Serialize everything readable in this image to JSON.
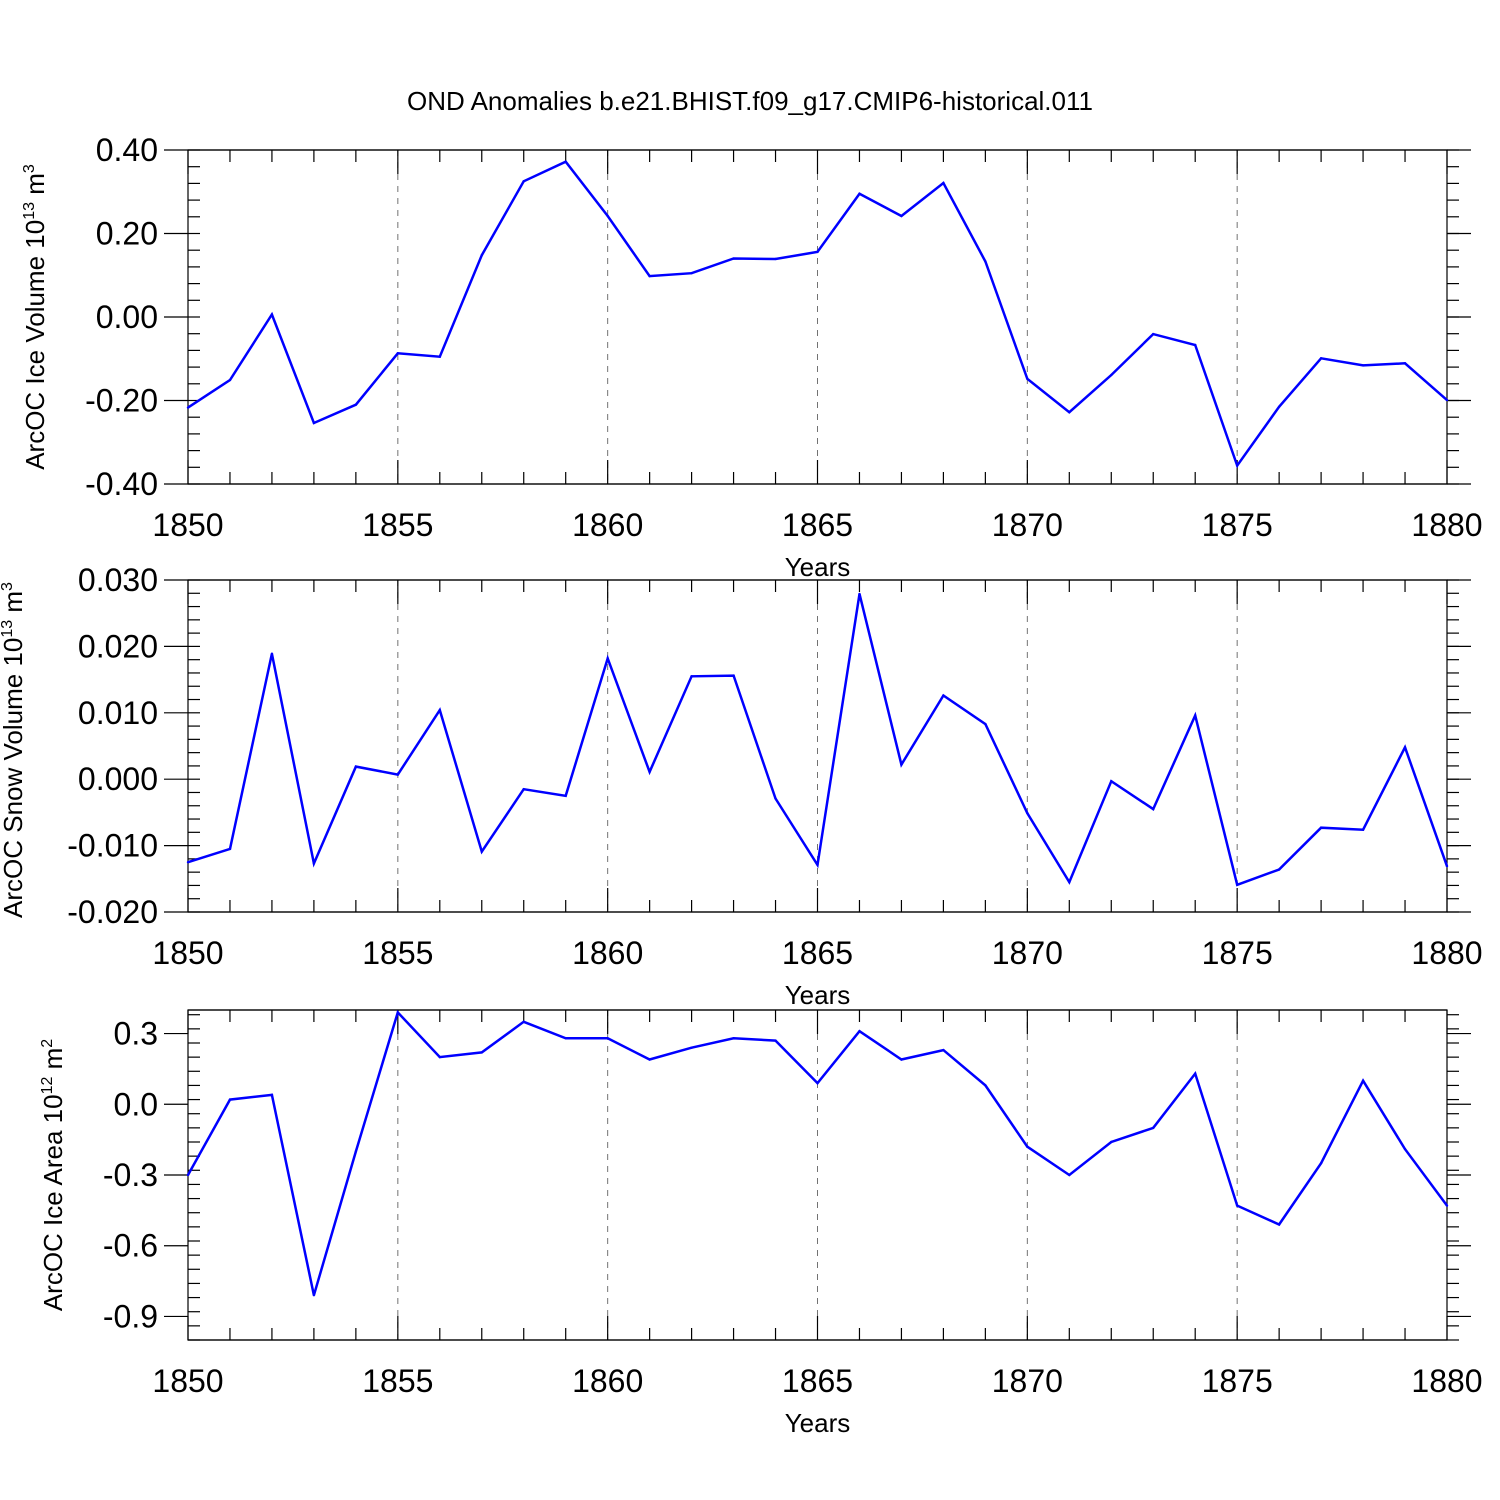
{
  "title": "OND Anomalies b.e21.BHIST.f09_g17.CMIP6-historical.011",
  "colors": {
    "line": "#0000ff",
    "axis": "#000000"
  },
  "chart_data": [
    {
      "type": "line",
      "ylabel_main": "ArcOC Ice Volume 10",
      "ylabel_sup": "13",
      "ylabel_unit": " m",
      "ylabel_unit_sup": "3",
      "xlabel": "Years",
      "xlim": [
        1850,
        1880
      ],
      "ylim": [
        -0.4,
        0.4
      ],
      "yticks": [
        -0.4,
        -0.2,
        0.0,
        0.2,
        0.4
      ],
      "yticklabels": [
        "-0.40",
        "-0.20",
        "0.00",
        "0.20",
        "0.40"
      ],
      "xticks": [
        1850,
        1855,
        1860,
        1865,
        1870,
        1875,
        1880
      ],
      "xticklabels": [
        "1850",
        "1855",
        "1860",
        "1865",
        "1870",
        "1875",
        "1880"
      ],
      "x": [
        1850,
        1851,
        1852,
        1853,
        1854,
        1855,
        1856,
        1857,
        1858,
        1859,
        1860,
        1861,
        1862,
        1863,
        1864,
        1865,
        1866,
        1867,
        1868,
        1869,
        1870,
        1871,
        1872,
        1873,
        1874,
        1875,
        1876,
        1877,
        1878,
        1879,
        1880
      ],
      "y": [
        -0.217,
        -0.151,
        0.006,
        -0.254,
        -0.21,
        -0.087,
        -0.095,
        0.148,
        0.325,
        0.372,
        0.242,
        0.098,
        0.105,
        0.14,
        0.139,
        0.156,
        0.295,
        0.242,
        0.321,
        0.133,
        -0.148,
        -0.228,
        -0.139,
        -0.041,
        -0.067,
        -0.356,
        -0.215,
        -0.099,
        -0.116,
        -0.111,
        -0.199
      ]
    },
    {
      "type": "line",
      "ylabel_main": "ArcOC Snow Volume 10",
      "ylabel_sup": "13",
      "ylabel_unit": " m",
      "ylabel_unit_sup": "3",
      "xlabel": "Years",
      "xlim": [
        1850,
        1880
      ],
      "ylim": [
        -0.02,
        0.03
      ],
      "yticks": [
        -0.02,
        -0.01,
        0.0,
        0.01,
        0.02,
        0.03
      ],
      "yticklabels": [
        "-0.020",
        "-0.010",
        "0.000",
        "0.010",
        "0.020",
        "0.030"
      ],
      "xticks": [
        1850,
        1855,
        1860,
        1865,
        1870,
        1875,
        1880
      ],
      "xticklabels": [
        "1850",
        "1855",
        "1860",
        "1865",
        "1870",
        "1875",
        "1880"
      ],
      "x": [
        1850,
        1851,
        1852,
        1853,
        1854,
        1855,
        1856,
        1857,
        1858,
        1859,
        1860,
        1861,
        1862,
        1863,
        1864,
        1865,
        1866,
        1867,
        1868,
        1869,
        1870,
        1871,
        1872,
        1873,
        1874,
        1875,
        1876,
        1877,
        1878,
        1879,
        1880
      ],
      "y": [
        -0.0125,
        -0.0105,
        0.0189,
        -0.0127,
        0.0019,
        0.0007,
        0.0104,
        -0.0109,
        -0.0015,
        -0.0025,
        0.0182,
        0.0011,
        0.0155,
        0.0156,
        -0.0029,
        -0.0129,
        0.0279,
        0.0022,
        0.0126,
        0.0083,
        -0.0051,
        -0.0155,
        -0.0003,
        -0.0045,
        0.0096,
        -0.0159,
        -0.0136,
        -0.0073,
        -0.0076,
        0.0048,
        -0.0131
      ]
    },
    {
      "type": "line",
      "ylabel_main": "ArcOC Ice Area 10",
      "ylabel_sup": "12",
      "ylabel_unit": " m",
      "ylabel_unit_sup": "2",
      "xlabel": "Years",
      "xlim": [
        1850,
        1880
      ],
      "ylim": [
        -1.0,
        0.4
      ],
      "yticks": [
        -0.9,
        -0.6,
        -0.3,
        0.0,
        0.3
      ],
      "yticklabels": [
        "-0.9",
        "-0.6",
        "-0.3",
        "0.0",
        "0.3"
      ],
      "xticks": [
        1850,
        1855,
        1860,
        1865,
        1870,
        1875,
        1880
      ],
      "xticklabels": [
        "1850",
        "1855",
        "1860",
        "1865",
        "1870",
        "1875",
        "1880"
      ],
      "x": [
        1850,
        1851,
        1852,
        1853,
        1854,
        1855,
        1856,
        1857,
        1858,
        1859,
        1860,
        1861,
        1862,
        1863,
        1864,
        1865,
        1866,
        1867,
        1868,
        1869,
        1870,
        1871,
        1872,
        1873,
        1874,
        1875,
        1876,
        1877,
        1878,
        1879,
        1880
      ],
      "y": [
        -0.3,
        0.02,
        0.04,
        -0.81,
        -0.2,
        0.39,
        0.2,
        0.22,
        0.35,
        0.28,
        0.28,
        0.19,
        0.24,
        0.28,
        0.27,
        0.09,
        0.31,
        0.19,
        0.23,
        0.08,
        -0.18,
        -0.3,
        -0.16,
        -0.1,
        0.13,
        -0.43,
        -0.51,
        -0.25,
        0.1,
        -0.19,
        -0.43
      ]
    }
  ]
}
